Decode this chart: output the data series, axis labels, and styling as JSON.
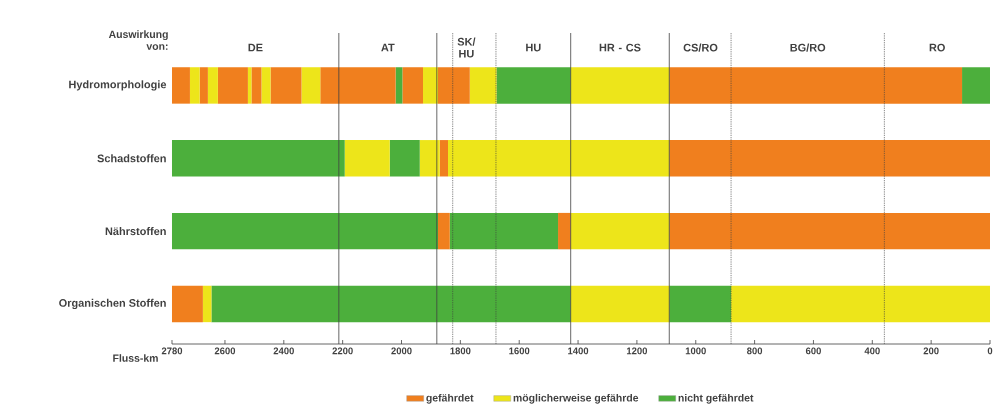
{
  "chart_data": {
    "type": "bar",
    "orientation": "horizontal",
    "stacked": true,
    "ylabel": "Auswirkung von:",
    "xlabel": "Fluss-km",
    "categories": [
      "Hydromorphologie",
      "Schadstoffen",
      "Nährstoffen",
      "Organischen Stoffen"
    ],
    "xlim": [
      2780,
      0
    ],
    "xticks": [
      2780,
      2600,
      2400,
      2200,
      2000,
      1800,
      1600,
      1400,
      1200,
      1000,
      800,
      600,
      400,
      200,
      0
    ],
    "legend": "bottom",
    "series": [
      {
        "name": "gefährdet",
        "color": "#f07f1e",
        "values": [
          null,
          1090,
          null,
          null
        ]
      },
      {
        "name": "möglicherweise gefährde",
        "color": "#ede51a",
        "values": [
          null,
          752,
          null,
          null
        ]
      },
      {
        "color": "#f07f1e",
        "values": [
          null,
          28,
          null,
          null
        ]
      },
      {
        "color": "#ede51a",
        "values": [
          null,
          68,
          null,
          null
        ]
      },
      {
        "name": "nicht gefährdet",
        "color": "#4caf3c",
        "values": [
          null,
          102,
          null,
          null
        ]
      },
      {
        "color": "#ede51a",
        "values": [
          null,
          153,
          null,
          null
        ]
      },
      {
        "color": "#4caf3c",
        "values": [
          null,
          587,
          null,
          null
        ]
      },
      {
        "color": "#4caf3c",
        "values": [
          95,
          null,
          null,
          null
        ]
      },
      {
        "color": "#f07f1e",
        "values": [
          995,
          null,
          null,
          null
        ]
      },
      {
        "color": "#ede51a",
        "values": [
          335,
          null,
          null,
          null
        ]
      },
      {
        "color": "#4caf3c",
        "values": [
          252,
          null,
          null,
          null
        ]
      },
      {
        "color": "#ede51a",
        "values": [
          91,
          null,
          null,
          null
        ]
      },
      {
        "color": "#f07f1e",
        "values": [
          108,
          null,
          null,
          null
        ]
      },
      {
        "color": "#ede51a",
        "values": [
          51,
          null,
          null,
          null
        ]
      },
      {
        "color": "#f07f1e",
        "values": [
          70,
          null,
          null,
          null
        ]
      },
      {
        "color": "#4caf3c",
        "values": [
          23,
          null,
          null,
          null
        ]
      },
      {
        "color": "#f07f1e",
        "values": [
          256,
          null,
          null,
          null
        ]
      },
      {
        "color": "#ede51a",
        "values": [
          64,
          null,
          null,
          null
        ]
      },
      {
        "color": "#f07f1e",
        "values": [
          105,
          null,
          null,
          null
        ]
      },
      {
        "color": "#ede51a",
        "values": [
          31,
          null,
          null,
          null
        ]
      },
      {
        "color": "#f07f1e",
        "values": [
          34,
          null,
          null,
          null
        ]
      },
      {
        "color": "#ede51a",
        "values": [
          12,
          null,
          null,
          null
        ]
      },
      {
        "color": "#f07f1e",
        "values": [
          102,
          null,
          null,
          null
        ]
      },
      {
        "color": "#ede51a",
        "values": [
          34,
          null,
          null,
          null
        ]
      },
      {
        "color": "#f07f1e",
        "values": [
          28,
          null,
          null,
          null
        ]
      },
      {
        "color": "#ede51a",
        "values": [
          33,
          null,
          null,
          null
        ]
      },
      {
        "color": "#f07f1e",
        "values": [
          61,
          null,
          null,
          null
        ]
      },
      {
        "color": "#f07f1e",
        "values": [
          null,
          null,
          1090,
          null
        ]
      },
      {
        "color": "#ede51a",
        "values": [
          null,
          null,
          335,
          null
        ]
      },
      {
        "color": "#f07f1e",
        "values": [
          null,
          null,
          43,
          null
        ]
      },
      {
        "color": "#4caf3c",
        "values": [
          null,
          null,
          368,
          null
        ]
      },
      {
        "color": "#f07f1e",
        "values": [
          null,
          null,
          40,
          null
        ]
      },
      {
        "color": "#4caf3c",
        "values": [
          null,
          null,
          904,
          null
        ]
      },
      {
        "color": "#ede51a",
        "values": [
          null,
          null,
          null,
          880
        ]
      },
      {
        "color": "#4caf3c",
        "values": [
          null,
          null,
          null,
          210
        ]
      },
      {
        "color": "#ede51a",
        "values": [
          null,
          null,
          null,
          335
        ]
      },
      {
        "color": "#4caf3c",
        "values": [
          null,
          null,
          null,
          1221
        ]
      },
      {
        "color": "#ede51a",
        "values": [
          null,
          null,
          null,
          29
        ]
      },
      {
        "color": "#f07f1e",
        "values": [
          null,
          null,
          null,
          105
        ]
      }
    ],
    "ref_lines": [
      {
        "axis": "x",
        "value": 2213,
        "line_style": "solid"
      },
      {
        "axis": "x",
        "value": 1880,
        "line_style": "solid"
      },
      {
        "axis": "x",
        "value": 1826,
        "line_style": "dotted"
      },
      {
        "axis": "x",
        "value": 1679,
        "line_style": "dotted"
      },
      {
        "axis": "x",
        "value": 1425,
        "line_style": "solid"
      },
      {
        "axis": "x",
        "value": 1090,
        "line_style": "solid"
      },
      {
        "axis": "x",
        "value": 880,
        "line_style": "dotted"
      },
      {
        "axis": "x",
        "value": 359,
        "line_style": "dotted"
      }
    ],
    "annotations": [
      "DE",
      "AT",
      "SK/ HU",
      "HU",
      "HR - CS",
      "CS/RO",
      "BG/RO",
      "RO"
    ]
  }
}
